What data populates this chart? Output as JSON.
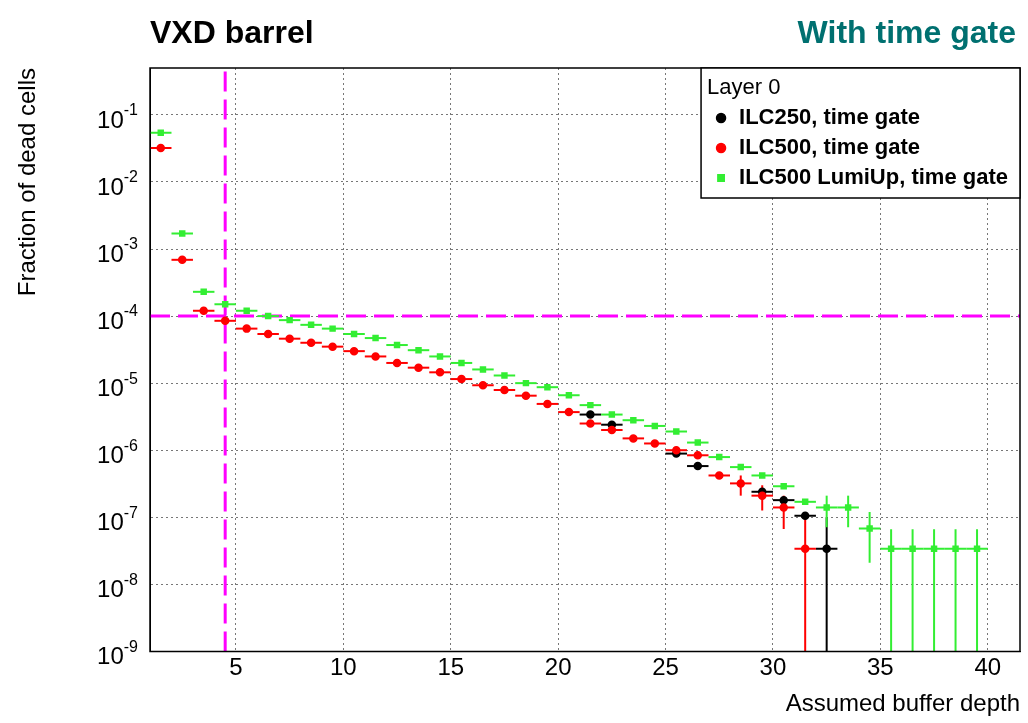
{
  "chart_data": {
    "type": "scatter",
    "title": "VXD barrel",
    "subtitle": "With time gate",
    "xlabel": "Assumed buffer depth",
    "ylabel": "Fraction of dead cells",
    "legend_title": "Layer 0",
    "legend": "top right",
    "log": "y",
    "grid": true,
    "xlim": [
      1,
      41.5
    ],
    "xticks": [
      5,
      10,
      15,
      20,
      25,
      30,
      35,
      40
    ],
    "ylim": [
      1e-09,
      0.5
    ],
    "yticks": [
      {
        "value": 1e-09,
        "label": "10$^{-9}$"
      },
      {
        "value": 1e-08,
        "label": "10$^{-8}$"
      },
      {
        "value": 1e-07,
        "label": "10$^{-7}$"
      },
      {
        "value": 1e-06,
        "label": "10$^{-6}$"
      },
      {
        "value": 1e-05,
        "label": "10$^{-5}$"
      },
      {
        "value": 0.0001,
        "label": "10$^{-4}$"
      },
      {
        "value": 0.001,
        "label": "10$^{-3}$"
      },
      {
        "value": 0.01,
        "label": "10$^{-2}$"
      },
      {
        "value": 0.1,
        "label": "10$^{-1}$"
      }
    ],
    "ref_lines": [
      {
        "axis": "x",
        "value": 4.5,
        "color": "#ff00ff",
        "line_style": "dashed"
      },
      {
        "axis": "y",
        "value": 0.0001,
        "color": "#ff00ff",
        "line_style": "dashed"
      }
    ],
    "series": [
      {
        "name": "ILC250, time gate",
        "color": "#000000",
        "marker": "circle",
        "x": [
          21.5,
          22.5,
          25.5,
          26.5,
          29.5,
          30.5,
          31.5,
          32.5
        ],
        "values": [
          3.4e-06,
          2.4e-06,
          8.9e-07,
          5.8e-07,
          2.4e-07,
          1.8e-07,
          1.05e-07,
          3.4e-08
        ],
        "xerrors": [
          0.5,
          0.5,
          0.5,
          0.5,
          0.5,
          0.5,
          0.5,
          0.5
        ],
        "errors": [
          null,
          null,
          null,
          null,
          null,
          null,
          null,
          [
            1e-09,
            1e-07
          ]
        ]
      },
      {
        "name": "ILC500, time gate",
        "color": "#ff0000",
        "marker": "circle",
        "x": [
          1.5,
          2.5,
          3.5,
          4.5,
          5.5,
          6.5,
          7.5,
          8.5,
          9.5,
          10.5,
          11.5,
          12.5,
          13.5,
          14.5,
          15.5,
          16.5,
          17.5,
          18.5,
          19.5,
          20.5,
          21.5,
          22.5,
          23.5,
          24.5,
          25.5,
          26.5,
          27.5,
          28.5,
          29.5,
          30.5,
          31.5
        ],
        "values": [
          0.032,
          0.00069,
          0.00012,
          8.5e-05,
          6.5e-05,
          5.4e-05,
          4.6e-05,
          4e-05,
          3.5e-05,
          3e-05,
          2.5e-05,
          2e-05,
          1.7e-05,
          1.45e-05,
          1.15e-05,
          9.3e-06,
          7.9e-06,
          6.5e-06,
          4.9e-06,
          3.7e-06,
          2.5e-06,
          2e-06,
          1.5e-06,
          1.26e-06,
          1e-06,
          8.4e-07,
          4.2e-07,
          3.2e-07,
          2.1e-07,
          1.4e-07,
          3.4e-08
        ],
        "xerrors": [
          0.5,
          0.5,
          0.5,
          0.5,
          0.5,
          0.5,
          0.5,
          0.5,
          0.5,
          0.5,
          0.5,
          0.5,
          0.5,
          0.5,
          0.5,
          0.5,
          0.5,
          0.5,
          0.5,
          0.5,
          0.5,
          0.5,
          0.5,
          0.5,
          0.5,
          0.5,
          0.5,
          0.5,
          0.5,
          0.5,
          0.5
        ],
        "errors": [
          null,
          null,
          null,
          null,
          null,
          null,
          null,
          null,
          null,
          null,
          null,
          null,
          null,
          null,
          null,
          null,
          null,
          null,
          null,
          null,
          null,
          null,
          null,
          null,
          null,
          null,
          null,
          [
            2.1e-07,
            4.2e-07
          ],
          [
            1.26e-07,
            3e-07
          ],
          [
            6.7e-08,
            2.1e-07
          ],
          [
            1e-09,
            1e-07
          ]
        ]
      },
      {
        "name": "ILC500 LumiUp, time gate",
        "color": "#33ee33",
        "marker": "square",
        "x": [
          1.5,
          2.5,
          3.5,
          4.5,
          5.5,
          6.5,
          7.5,
          8.5,
          9.5,
          10.5,
          11.5,
          12.5,
          13.5,
          14.5,
          15.5,
          16.5,
          17.5,
          18.5,
          19.5,
          20.5,
          21.5,
          22.5,
          23.5,
          24.5,
          25.5,
          26.5,
          27.5,
          28.5,
          29.5,
          30.5,
          31.5,
          32.5,
          33.5,
          34.5,
          35.5,
          36.5,
          37.5,
          38.5,
          39.5
        ],
        "values": [
          0.054,
          0.0017,
          0.00023,
          0.00015,
          0.00012,
          0.0001,
          8.7e-05,
          7.4e-05,
          6.5e-05,
          5.4e-05,
          4.7e-05,
          3.7e-05,
          3.1e-05,
          2.5e-05,
          2e-05,
          1.6e-05,
          1.3e-05,
          1e-05,
          8.7e-06,
          6.6e-06,
          4.7e-06,
          3.4e-06,
          2.8e-06,
          2.3e-06,
          1.9e-06,
          1.3e-06,
          7.9e-07,
          5.6e-07,
          4.2e-07,
          2.9e-07,
          1.7e-07,
          1.4e-07,
          1.4e-07,
          6.8e-08,
          3.4e-08,
          3.4e-08,
          3.4e-08,
          3.4e-08,
          3.4e-08
        ],
        "xerrors": [
          0.5,
          0.5,
          0.5,
          0.5,
          0.5,
          0.5,
          0.5,
          0.5,
          0.5,
          0.5,
          0.5,
          0.5,
          0.5,
          0.5,
          0.5,
          0.5,
          0.5,
          0.5,
          0.5,
          0.5,
          0.5,
          0.5,
          0.5,
          0.5,
          0.5,
          0.5,
          0.5,
          0.5,
          0.5,
          0.5,
          0.5,
          0.5,
          0.5,
          0.5,
          0.5,
          0.5,
          0.5,
          0.5,
          0.5
        ],
        "errors": [
          null,
          null,
          null,
          null,
          null,
          null,
          null,
          null,
          null,
          null,
          null,
          null,
          null,
          null,
          null,
          null,
          null,
          null,
          null,
          null,
          null,
          null,
          null,
          null,
          null,
          null,
          null,
          null,
          null,
          null,
          null,
          [
            7.1e-08,
            2.1e-07
          ],
          [
            7.1e-08,
            2.1e-07
          ],
          [
            2.1e-08,
            1.2e-07
          ],
          [
            1e-09,
            6.6e-08
          ],
          [
            1e-09,
            6.6e-08
          ],
          [
            1e-09,
            6.6e-08
          ],
          [
            1e-09,
            6.6e-08
          ],
          [
            1e-09,
            6.6e-08
          ]
        ]
      }
    ]
  }
}
